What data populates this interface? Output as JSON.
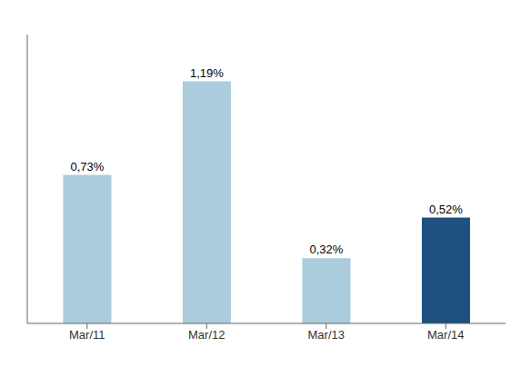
{
  "chart_data": {
    "type": "bar",
    "categories": [
      "Mar/11",
      "Mar/12",
      "Mar/13",
      "Mar/14"
    ],
    "values": [
      0.73,
      1.19,
      0.32,
      0.52
    ],
    "value_labels": [
      "0,73%",
      "1,19%",
      "0,32%",
      "0,52%"
    ],
    "colors": [
      "#aaccdd",
      "#aaccdd",
      "#aaccdd",
      "#1e5080"
    ],
    "ylim": [
      0,
      1.42
    ],
    "grid": false,
    "data_labels": true,
    "tick_labels": "x"
  }
}
